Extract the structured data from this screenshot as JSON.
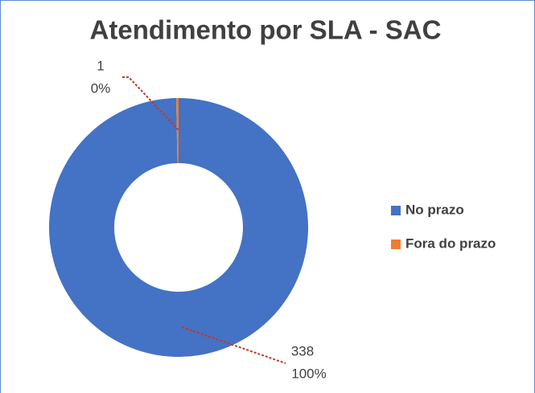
{
  "chart_data": {
    "type": "donut",
    "title": "Atendimento por SLA - SAC",
    "categories": [
      "No prazo",
      "Fora do prazo"
    ],
    "values": [
      338,
      1
    ],
    "percent_labels": [
      "100%",
      "0%"
    ],
    "colors": [
      "#4472c4",
      "#ed7d31"
    ],
    "legend": "right"
  }
}
